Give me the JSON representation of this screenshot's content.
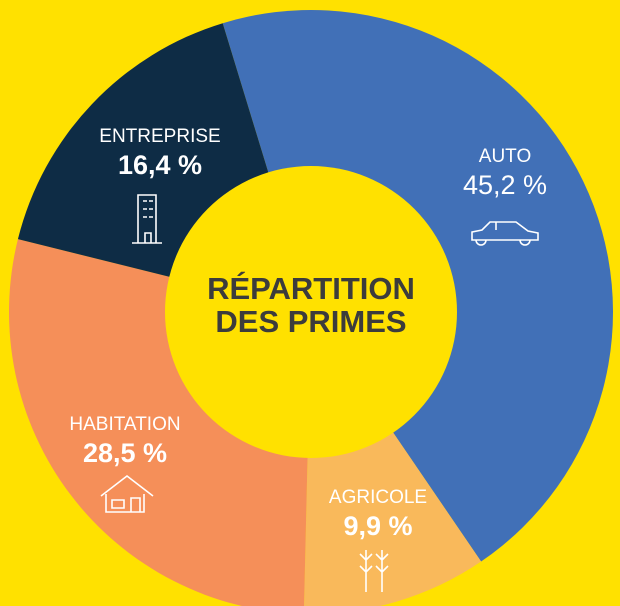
{
  "chart_data": {
    "type": "donut",
    "title": "RÉPARTITION DES PRIMES",
    "categories": [
      "AUTO",
      "AGRICOLE",
      "HABITATION",
      "ENTREPRISE"
    ],
    "values": [
      45.2,
      9.9,
      28.5,
      16.4
    ],
    "value_labels": [
      "45,2 %",
      "9,9 %",
      "28,5 %",
      "16,4 %"
    ],
    "colors": [
      "#4170b7",
      "#f9b95b",
      "#f58f59",
      "#0e2c45"
    ]
  }
}
